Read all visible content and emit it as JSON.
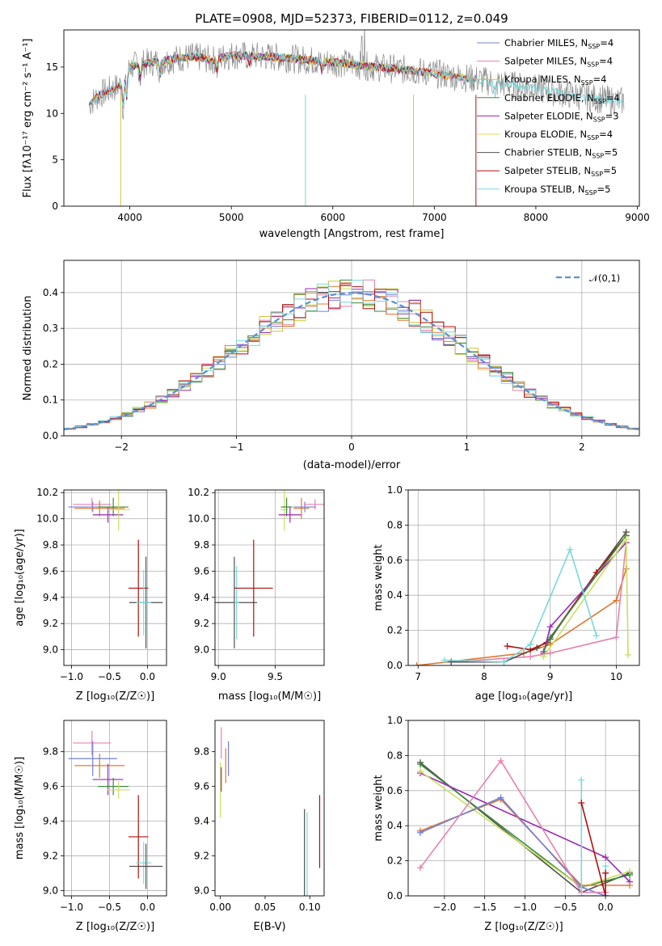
{
  "title": "PLATE=0908, MJD=52373, FIBERID=0112, z=0.049",
  "colors": {
    "Chabrier MILES": "#6f80dc",
    "Salpeter MILES": "#e880b0",
    "Kroupa MILES": "#d4c43c",
    "Chabrier ELODIE": "#3a8a3a",
    "Salpeter ELODIE": "#9a28b4",
    "Kroupa ELODIE": "#f0d060",
    "Chabrier STELIB": "#505050",
    "Salpeter STELIB": "#b01010",
    "Kroupa STELIB": "#78d8dc",
    "orange": "#e07830",
    "lime": "#c8e060",
    "gauss": "#5b8fd6"
  },
  "chart_data": [
    {
      "id": "spectrum",
      "type": "line",
      "xlabel": "wavelength [Angstrom, rest frame]",
      "ylabel": "Flux [f_λ 10^-17 erg cm^-2 s^-1 A^-1]",
      "xlim": [
        3350,
        9020
      ],
      "ylim": [
        0,
        19
      ],
      "xticks": [
        4000,
        5000,
        6000,
        7000,
        8000,
        9000
      ],
      "yticks": [
        0,
        5,
        10,
        15
      ],
      "legend": [
        {
          "label": "Chabrier MILES, N",
          "nssp": "4"
        },
        {
          "label": "Salpeter MILES, N",
          "nssp": "4"
        },
        {
          "label": "Kroupa MILES, N",
          "nssp": "4"
        },
        {
          "label": "Chabrier ELODIE, N",
          "nssp": "4"
        },
        {
          "label": "Salpeter ELODIE, N",
          "nssp": "3"
        },
        {
          "label": "Kroupa ELODIE, N",
          "nssp": "4"
        },
        {
          "label": "Chabrier STELIB, N",
          "nssp": "5"
        },
        {
          "label": "Salpeter STELIB, N",
          "nssp": "5"
        },
        {
          "label": "Kroupa STELIB, N",
          "nssp": "5"
        }
      ],
      "legend_sub": "SSP",
      "legend_position": "upper right",
      "continuum": {
        "x": [
          3600,
          3700,
          3800,
          3900,
          4000,
          4100,
          4200,
          4300,
          4400,
          4500,
          4600,
          4700,
          4800,
          4900,
          5000,
          5200,
          5400,
          5600,
          5800,
          6000,
          6200,
          6400,
          6600,
          6800,
          7000,
          7200,
          7400,
          7600,
          7800,
          8000,
          8200,
          8400,
          8600,
          8800
        ],
        "y": [
          11,
          12,
          12.5,
          13,
          15,
          15.3,
          15.5,
          15.6,
          15.8,
          16.0,
          16.1,
          16.0,
          15.7,
          16.0,
          16.3,
          16.2,
          16.1,
          15.9,
          15.7,
          15.5,
          15.3,
          15.0,
          14.8,
          14.6,
          14.3,
          14.0,
          13.7,
          13.3,
          13.0,
          12.7,
          12.3,
          11.9,
          11.6,
          11.3
        ]
      }
    },
    {
      "id": "residuals",
      "type": "line",
      "xlabel": "(data-model)/error",
      "ylabel": "Normed distribution",
      "xlim": [
        -2.5,
        2.5
      ],
      "ylim": [
        0,
        0.49
      ],
      "xticks": [
        -2,
        -1,
        0,
        1,
        2
      ],
      "yticks": [
        0.0,
        0.1,
        0.2,
        0.3,
        0.4
      ],
      "grid": true,
      "legend": "N(0,1)",
      "legend_position": "upper right",
      "bin_width": 0.1
    },
    {
      "id": "age-vs-Z",
      "type": "scatter",
      "xlabel": "Z [log10(Z/Z☉)]",
      "ylabel": "age [log10(age/yr)]",
      "xlim": [
        -1.1,
        0.25
      ],
      "ylim": [
        8.88,
        10.22
      ],
      "xticks": [
        -1.0,
        -0.5,
        0.0
      ],
      "yticks": [
        9.0,
        9.2,
        9.4,
        9.6,
        9.8,
        10.0,
        10.2
      ],
      "grid": true,
      "points": [
        {
          "s": "Chabrier MILES",
          "x": -0.72,
          "xe": 0.32,
          "y": 10.09,
          "ye": 0.04
        },
        {
          "s": "Salpeter MILES",
          "x": -0.73,
          "xe": 0.25,
          "y": 10.11,
          "ye": 0.05
        },
        {
          "s": "orange",
          "x": -0.63,
          "xe": 0.33,
          "y": 10.08,
          "ye": 0.06
        },
        {
          "s": "Salpeter ELODIE",
          "x": -0.52,
          "xe": 0.2,
          "y": 10.03,
          "ye": 0.06
        },
        {
          "s": "Chabrier ELODIE",
          "x": -0.45,
          "xe": 0.2,
          "y": 10.09,
          "ye": 0.07
        },
        {
          "s": "lime",
          "x": -0.38,
          "xe": 0.15,
          "y": 10.07,
          "ye": 0.16
        },
        {
          "s": "Salpeter STELIB",
          "x": -0.12,
          "xe": 0.13,
          "y": 9.47,
          "ye": 0.37
        },
        {
          "s": "Chabrier STELIB",
          "x": -0.02,
          "xe": 0.22,
          "y": 9.36,
          "ye": 0.35
        },
        {
          "s": "Kroupa STELIB",
          "x": -0.05,
          "xe": 0.1,
          "y": 9.36,
          "ye": 0.25
        }
      ]
    },
    {
      "id": "age-vs-mass",
      "type": "scatter",
      "xlabel": "mass [log10(M/M☉)]",
      "ylabel": "",
      "xlim": [
        8.97,
        9.93
      ],
      "ylim": [
        8.88,
        10.22
      ],
      "xticks": [
        9.0,
        9.5
      ],
      "yticks": [
        9.0,
        9.2,
        9.4,
        9.6,
        9.8,
        10.0,
        10.2
      ],
      "grid": true,
      "points": [
        {
          "s": "Chabrier STELIB",
          "x": 9.14,
          "xe": 0.2,
          "y": 9.36,
          "ye": 0.35
        },
        {
          "s": "Kroupa STELIB",
          "x": 9.16,
          "xe": 0.02,
          "y": 9.36,
          "ye": 0.28
        },
        {
          "s": "Salpeter STELIB",
          "x": 9.31,
          "xe": 0.17,
          "y": 9.47,
          "ye": 0.37
        },
        {
          "s": "lime",
          "x": 9.58,
          "xe": 0.03,
          "y": 10.07,
          "ye": 0.16
        },
        {
          "s": "Chabrier ELODIE",
          "x": 9.6,
          "xe": 0.05,
          "y": 10.09,
          "ye": 0.07
        },
        {
          "s": "Salpeter ELODIE",
          "x": 9.63,
          "xe": 0.1,
          "y": 10.03,
          "ye": 0.06
        },
        {
          "s": "orange",
          "x": 9.73,
          "xe": 0.07,
          "y": 10.08,
          "ye": 0.08
        },
        {
          "s": "Chabrier MILES",
          "x": 9.76,
          "xe": 0.1,
          "y": 10.09,
          "ye": 0.04
        },
        {
          "s": "Salpeter MILES",
          "x": 9.85,
          "xe": 0.1,
          "y": 10.11,
          "ye": 0.04
        }
      ]
    },
    {
      "id": "massweight-vs-age",
      "type": "line",
      "xlabel": "age [log10(age/yr)]",
      "ylabel": "mass weight",
      "xlim": [
        6.85,
        10.35
      ],
      "ylim": [
        0,
        1.0
      ],
      "xticks": [
        7,
        8,
        9,
        10
      ],
      "yticks": [
        0.0,
        0.2,
        0.4,
        0.6,
        0.8,
        1.0
      ],
      "grid": true,
      "series": [
        {
          "s": "orange",
          "x": [
            6.98,
            8.6,
            9.0,
            10.0,
            10.15
          ],
          "y": [
            0.0,
            0.07,
            0.12,
            0.37,
            0.55
          ]
        },
        {
          "s": "Salpeter MILES",
          "x": [
            7.5,
            8.7,
            9.0,
            10.0,
            10.15
          ],
          "y": [
            0.02,
            0.05,
            0.07,
            0.16,
            0.7
          ]
        },
        {
          "s": "Chabrier STELIB",
          "x": [
            7.5,
            8.3,
            8.8,
            9.0,
            9.7,
            10.15
          ],
          "y": [
            0.02,
            0.02,
            0.1,
            0.15,
            0.53,
            0.76
          ]
        },
        {
          "s": "Salpeter STELIB",
          "x": [
            8.35,
            8.7,
            8.95,
            9.7,
            10.15
          ],
          "y": [
            0.11,
            0.09,
            0.13,
            0.53,
            0.74
          ]
        },
        {
          "s": "Salpeter ELODIE",
          "x": [
            8.9,
            9.0,
            10.15
          ],
          "y": [
            0.07,
            0.22,
            0.7
          ]
        },
        {
          "s": "Chabrier ELODIE",
          "x": [
            8.9,
            9.0,
            10.15
          ],
          "y": [
            0.08,
            0.16,
            0.74
          ]
        },
        {
          "s": "lime",
          "x": [
            8.9,
            10.15,
            10.18
          ],
          "y": [
            0.05,
            0.72,
            0.06
          ]
        },
        {
          "s": "Kroupa STELIB",
          "x": [
            7.4,
            8.3,
            8.7,
            9.3,
            9.7
          ],
          "y": [
            0.03,
            0.02,
            0.12,
            0.66,
            0.17
          ]
        }
      ]
    },
    {
      "id": "mass-vs-Z",
      "type": "scatter",
      "xlabel": "Z [log10(Z/Z☉)]",
      "ylabel": "mass [log10(M/M☉)]",
      "xlim": [
        -1.1,
        0.25
      ],
      "ylim": [
        8.97,
        9.98
      ],
      "xticks": [
        -1.0,
        -0.5,
        0.0
      ],
      "yticks": [
        9.0,
        9.2,
        9.4,
        9.6,
        9.8
      ],
      "grid": true,
      "points": [
        {
          "s": "Salpeter MILES",
          "x": -0.73,
          "xe": 0.25,
          "y": 9.85,
          "ye": 0.07
        },
        {
          "s": "Chabrier MILES",
          "x": -0.72,
          "xe": 0.32,
          "y": 9.76,
          "ye": 0.1
        },
        {
          "s": "orange",
          "x": -0.63,
          "xe": 0.33,
          "y": 9.72,
          "ye": 0.07
        },
        {
          "s": "Salpeter ELODIE",
          "x": -0.52,
          "xe": 0.2,
          "y": 9.64,
          "ye": 0.09
        },
        {
          "s": "Chabrier ELODIE",
          "x": -0.45,
          "xe": 0.2,
          "y": 9.6,
          "ye": 0.05
        },
        {
          "s": "lime",
          "x": -0.38,
          "xe": 0.15,
          "y": 9.58,
          "ye": 0.05
        },
        {
          "s": "Salpeter STELIB",
          "x": -0.12,
          "xe": 0.13,
          "y": 9.31,
          "ye": 0.24
        },
        {
          "s": "Kroupa STELIB",
          "x": -0.05,
          "xe": 0.1,
          "y": 9.16,
          "ye": 0.12
        },
        {
          "s": "Chabrier STELIB",
          "x": -0.02,
          "xe": 0.22,
          "y": 9.14,
          "ye": 0.13
        }
      ]
    },
    {
      "id": "mass-vs-ebv",
      "type": "scatter",
      "xlabel": "E(B-V)",
      "ylabel": "",
      "xlim": [
        -0.006,
        0.116
      ],
      "ylim": [
        8.97,
        9.98
      ],
      "xticks": [
        0.0,
        0.05,
        0.1
      ],
      "yticks": [
        9.0,
        9.2,
        9.4,
        9.6,
        9.8
      ],
      "grid": false,
      "points": [
        {
          "s": "lime",
          "x": 0.0,
          "y": 9.58,
          "ye": 0.16
        },
        {
          "s": "Salpeter ELODIE",
          "x": 0.001,
          "y": 9.64,
          "ye": 0.07
        },
        {
          "s": "Salpeter MILES",
          "x": 0.001,
          "y": 9.85,
          "ye": 0.09
        },
        {
          "s": "orange",
          "x": 0.006,
          "y": 9.72,
          "ye": 0.1
        },
        {
          "s": "Chabrier MILES",
          "x": 0.009,
          "y": 9.76,
          "ye": 0.1
        },
        {
          "s": "Chabrier STELIB",
          "x": 0.094,
          "y": 9.17,
          "ye": 0.3
        },
        {
          "s": "Kroupa STELIB",
          "x": 0.097,
          "y": 9.16,
          "ye": 0.29
        },
        {
          "s": "Salpeter STELIB",
          "x": 0.111,
          "y": 9.34,
          "ye": 0.21
        }
      ]
    },
    {
      "id": "massweight-vs-Z",
      "type": "line",
      "xlabel": "Z [log10(Z/Z☉)]",
      "ylabel": "mass weight",
      "xlim": [
        -2.45,
        0.42
      ],
      "ylim": [
        0,
        1.0
      ],
      "xticks": [
        -2.0,
        -1.5,
        -1.0,
        -0.5,
        0.0
      ],
      "yticks": [
        0.0,
        0.2,
        0.4,
        0.6,
        0.8,
        1.0
      ],
      "grid": true,
      "series": [
        {
          "s": "Chabrier STELIB",
          "x": [
            -2.3,
            -0.3,
            0.3
          ],
          "y": [
            0.76,
            0.02,
            0.13
          ]
        },
        {
          "s": "Chabrier ELODIE",
          "x": [
            -2.3,
            -0.3,
            0.3
          ],
          "y": [
            0.75,
            0.05,
            0.12
          ]
        },
        {
          "s": "Salpeter ELODIE",
          "x": [
            -2.3,
            0.0,
            0.3
          ],
          "y": [
            0.7,
            0.22,
            0.08
          ]
        },
        {
          "s": "lime",
          "x": [
            -2.3,
            -0.3,
            0.3
          ],
          "y": [
            0.71,
            0.05,
            0.14
          ]
        },
        {
          "s": "orange",
          "x": [
            -2.3,
            -1.3,
            -0.3,
            0.3
          ],
          "y": [
            0.37,
            0.55,
            0.06,
            0.06
          ]
        },
        {
          "s": "Chabrier MILES",
          "x": [
            -2.3,
            -1.3,
            -0.3,
            0.0
          ],
          "y": [
            0.36,
            0.56,
            0.05,
            0.0
          ]
        },
        {
          "s": "Salpeter MILES",
          "x": [
            -2.3,
            -1.3,
            -0.3,
            0.0
          ],
          "y": [
            0.16,
            0.77,
            0.02,
            0.02
          ]
        },
        {
          "s": "Kroupa STELIB",
          "x": [
            -0.3,
            -0.3,
            0.0,
            0.0
          ],
          "y": [
            0.66,
            0.0,
            0.0,
            0.17
          ]
        },
        {
          "s": "Salpeter STELIB",
          "x": [
            -0.3,
            0.0,
            0.0
          ],
          "y": [
            0.53,
            0.0,
            0.13
          ]
        }
      ]
    }
  ]
}
